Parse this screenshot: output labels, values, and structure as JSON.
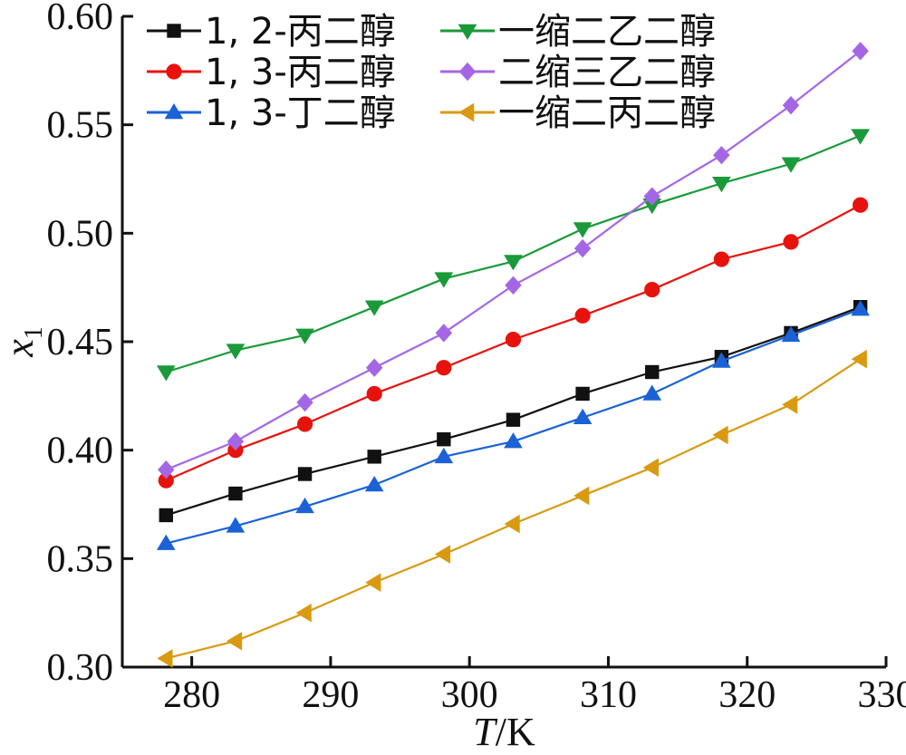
{
  "chart_data": {
    "type": "line",
    "title": "",
    "xlabel": {
      "italic": "T",
      "rest": "/K"
    },
    "ylabel": {
      "main": "x",
      "sub": "1"
    },
    "xlim": [
      275,
      330
    ],
    "ylim": [
      0.3,
      0.6
    ],
    "xticks": [
      280,
      290,
      300,
      310,
      320,
      330
    ],
    "yticks": [
      0.3,
      0.35,
      0.4,
      0.45,
      0.5,
      0.55,
      0.6
    ],
    "xtick_labels": [
      "280",
      "290",
      "300",
      "310",
      "320",
      "330"
    ],
    "ytick_labels": [
      "0.30",
      "0.35",
      "0.40",
      "0.45",
      "0.50",
      "0.55",
      "0.60"
    ],
    "grid": false,
    "legend_position": "top-left",
    "x": [
      278.15,
      283.15,
      288.15,
      293.15,
      298.15,
      303.15,
      308.15,
      313.15,
      318.15,
      323.15,
      328.15
    ],
    "series": [
      {
        "name": "1, 2-丙二醇",
        "color": "#111111",
        "marker": "square",
        "values": [
          0.37,
          0.38,
          0.389,
          0.397,
          0.405,
          0.414,
          0.426,
          0.436,
          0.443,
          0.454,
          0.466
        ]
      },
      {
        "name": "1, 3-丙二醇",
        "color": "#e8120c",
        "marker": "circle",
        "values": [
          0.386,
          0.4,
          0.412,
          0.426,
          0.438,
          0.451,
          0.462,
          0.474,
          0.488,
          0.496,
          0.513
        ]
      },
      {
        "name": "1, 3-丁二醇",
        "color": "#1a62d6",
        "marker": "triangle-up",
        "values": [
          0.357,
          0.365,
          0.374,
          0.384,
          0.397,
          0.404,
          0.415,
          0.426,
          0.441,
          0.453,
          0.465
        ]
      },
      {
        "name": "一缩二乙二醇",
        "color": "#1a9a38",
        "marker": "triangle-down",
        "values": [
          0.436,
          0.446,
          0.453,
          0.466,
          0.479,
          0.487,
          0.502,
          0.513,
          0.523,
          0.532,
          0.545
        ]
      },
      {
        "name": "二缩三乙二醇",
        "color": "#a566e6",
        "marker": "diamond",
        "values": [
          0.391,
          0.404,
          0.422,
          0.438,
          0.454,
          0.476,
          0.493,
          0.517,
          0.536,
          0.559,
          0.584
        ]
      },
      {
        "name": "一缩二丙二醇",
        "color": "#d99a12",
        "marker": "triangle-left",
        "values": [
          0.304,
          0.312,
          0.325,
          0.339,
          0.352,
          0.366,
          0.379,
          0.392,
          0.407,
          0.421,
          0.442
        ]
      }
    ]
  }
}
